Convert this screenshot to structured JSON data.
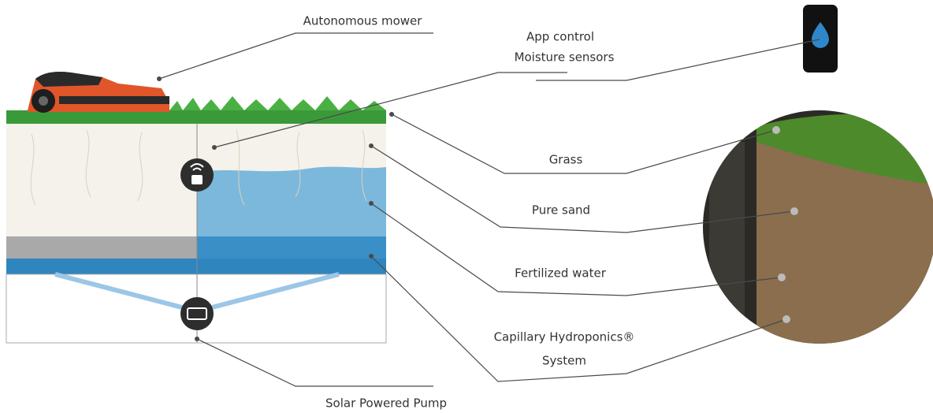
{
  "labels": {
    "mower": "Autonomous mower",
    "app_control": "App control",
    "moisture_sensors": "Moisture sensors",
    "grass": "Grass",
    "pure_sand": "Pure sand",
    "fertilized_water": "Fertilized water",
    "system_line1": "Capillary Hydroponics®",
    "system_line2": "System",
    "pump": "Solar Powered Pump"
  }
}
